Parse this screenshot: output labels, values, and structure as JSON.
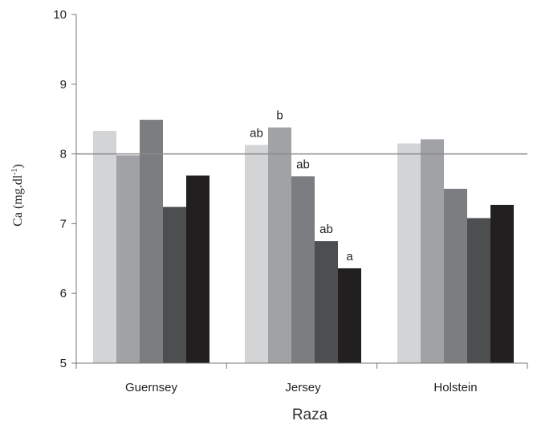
{
  "chart_data": {
    "type": "bar",
    "categories": [
      "Guernsey",
      "Jersey",
      "Holstein"
    ],
    "series": [
      {
        "values": [
          8.33,
          8.13,
          8.15
        ],
        "color": "#d3d4d6"
      },
      {
        "values": [
          7.98,
          8.38,
          8.21
        ],
        "color": "#a1a2a5"
      },
      {
        "values": [
          8.49,
          7.68,
          7.5
        ],
        "color": "#7c7d80"
      },
      {
        "values": [
          7.24,
          6.75,
          7.08
        ],
        "color": "#4d4e50"
      },
      {
        "values": [
          7.69,
          6.36,
          7.27
        ],
        "color": "#221f20"
      }
    ],
    "annotations": [
      {
        "category": "Jersey",
        "series": 0,
        "text": "ab"
      },
      {
        "category": "Jersey",
        "series": 1,
        "text": "b"
      },
      {
        "category": "Jersey",
        "series": 2,
        "text": "ab"
      },
      {
        "category": "Jersey",
        "series": 3,
        "text": "ab"
      },
      {
        "category": "Jersey",
        "series": 4,
        "text": "a"
      }
    ],
    "reference_line": 8,
    "ylim": [
      5,
      10
    ],
    "yticks": [
      "5",
      "6",
      "7",
      "8",
      "9",
      "10"
    ],
    "xlabel": "Raza",
    "ylabel_main": "Ca (mg.dl",
    "ylabel_sup": "-1",
    "ylabel_close": ")",
    "grid": false,
    "legend": "none"
  }
}
